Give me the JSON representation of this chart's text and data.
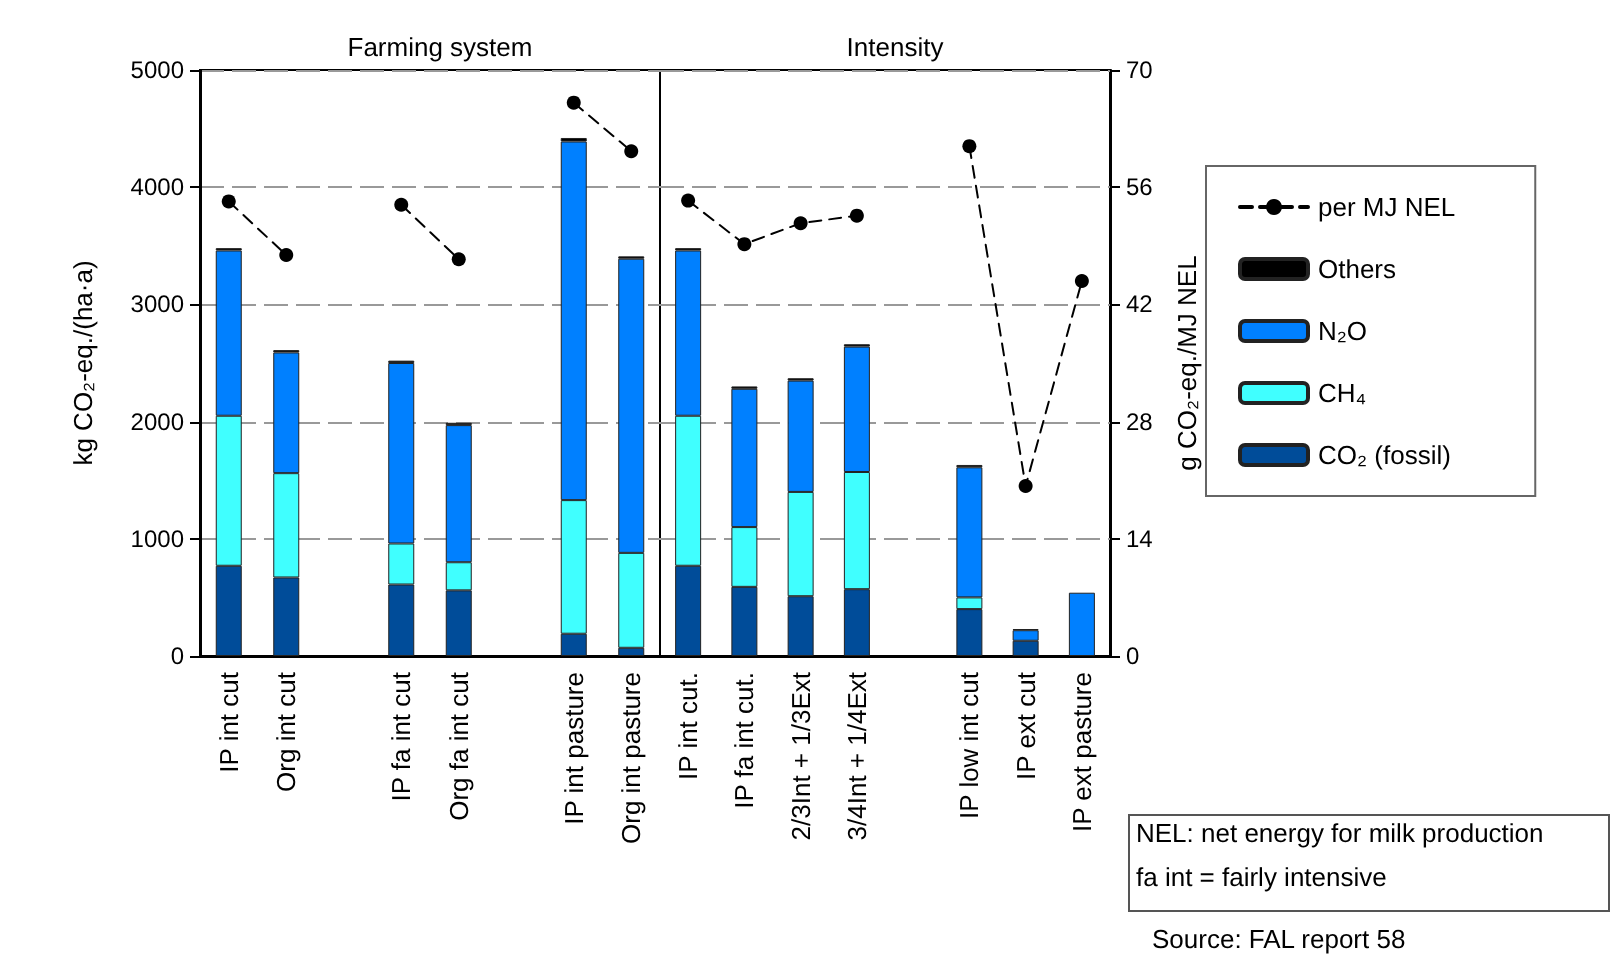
{
  "chart_data": [
    {
      "type": "bar",
      "title": "Farming system",
      "categories": [
        "IP int cut",
        "Org int cut",
        null,
        "IP fa int cut",
        "Org fa int cut",
        null,
        "IP int pasture",
        "Org int pasture"
      ],
      "stacked": true,
      "series": [
        {
          "color": "#004c99",
          "values": [
            770,
            670,
            null,
            610,
            560,
            null,
            190,
            70
          ]
        },
        {
          "color": "#40ffff",
          "values": [
            1280,
            890,
            null,
            350,
            240,
            null,
            1140,
            810
          ]
        },
        {
          "color": "#0080ff",
          "values": [
            1410,
            1030,
            null,
            1540,
            1170,
            null,
            3060,
            2510
          ]
        },
        {
          "color": "#000000",
          "values": [
            20,
            20,
            null,
            20,
            20,
            null,
            30,
            20
          ]
        },
        {
          "type": "line",
          "axis": "y2",
          "color": "#000000",
          "values": [
            54.3,
            47.9,
            null,
            53.9,
            47.4,
            null,
            66.1,
            60.3
          ]
        }
      ],
      "ylim": [
        0,
        5000
      ],
      "yticks": [
        0,
        1000,
        2000,
        3000,
        4000,
        5000
      ],
      "ylabel": "kg CO₂-eq./(ha·a)",
      "y2lim": [
        0,
        70
      ],
      "grid": "y",
      "marker": "circle",
      "line_style": "dashed"
    },
    {
      "type": "bar",
      "title": "Intensity",
      "categories": [
        "IP int cut.",
        "IP fa int cut.",
        "2/3Int + 1/3Ext",
        "3/4Int + 1/4Ext",
        null,
        "IP low int cut",
        "IP ext cut",
        "IP ext pasture"
      ],
      "stacked": true,
      "series": [
        {
          "name": "CO₂ (fossil)",
          "color": "#004c99",
          "values": [
            770,
            590,
            510,
            570,
            null,
            400,
            130,
            0
          ]
        },
        {
          "name": "CH₄",
          "color": "#40ffff",
          "values": [
            1280,
            510,
            890,
            1000,
            null,
            100,
            0,
            0
          ]
        },
        {
          "name": "N₂O",
          "color": "#0080ff",
          "values": [
            1410,
            1180,
            950,
            1070,
            null,
            1110,
            90,
            540
          ]
        },
        {
          "name": "Others",
          "color": "#000000",
          "values": [
            20,
            20,
            20,
            20,
            null,
            20,
            10,
            0
          ]
        },
        {
          "name": "per MJ NEL",
          "type": "line",
          "axis": "y2",
          "color": "#000000",
          "values": [
            54.4,
            49.2,
            51.7,
            52.6,
            null,
            60.9,
            20.3,
            44.8
          ]
        }
      ],
      "ylim": [
        0,
        5000
      ],
      "y2lim": [
        0,
        70
      ],
      "y2ticks": [
        0,
        14,
        28,
        42,
        56,
        70
      ],
      "y2label": "g CO₂-eq./MJ NEL",
      "grid": "y",
      "marker": "circle",
      "line_style": "dashed",
      "legend": "right",
      "annotations": [
        "NEL: net energy for milk production",
        "fa int = fairly intensive",
        "Source: FAL report 58"
      ]
    }
  ]
}
